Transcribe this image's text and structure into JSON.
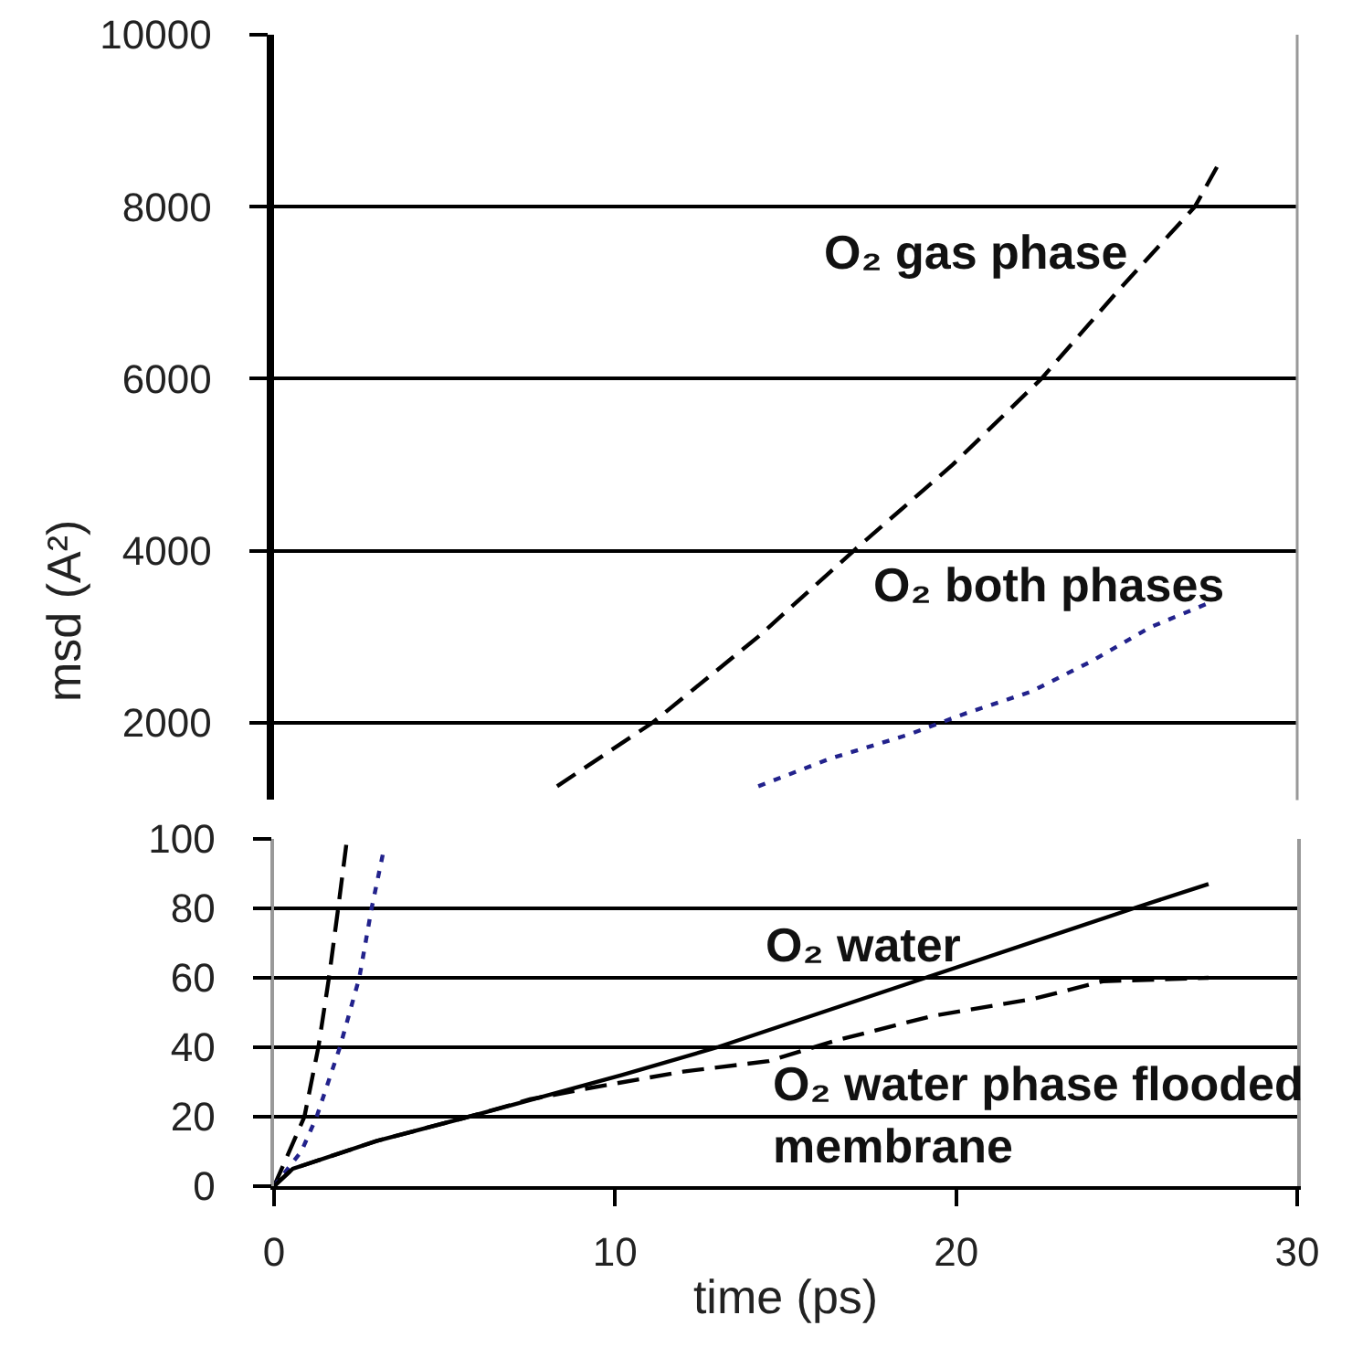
{
  "chart_data": [
    {
      "type": "line",
      "ylabel": "msd (A²)",
      "xlim": [
        0,
        30
      ],
      "ylim": [
        1100,
        10000
      ],
      "yticks": [
        2000,
        4000,
        6000,
        8000,
        10000
      ],
      "grid": "y",
      "tick_labels": "y",
      "series": [
        {
          "name": "O₂ gas phase",
          "color": "#000000",
          "line_style": "dashed",
          "x": [
            8.3,
            11.1,
            14.2,
            17.0,
            19.9,
            22.5,
            24.7,
            27.0,
            27.7
          ],
          "values": [
            1260,
            2000,
            3000,
            4000,
            5000,
            6000,
            7000,
            8000,
            8500
          ]
        },
        {
          "name": "O₂ both phases",
          "color": "#22228c",
          "line_style": "dotted",
          "x": [
            14.2,
            16.3,
            18.6,
            20.3,
            22.2,
            24.0,
            25.7,
            27.4
          ],
          "values": [
            1260,
            1580,
            1860,
            2110,
            2360,
            2720,
            3110,
            3390
          ]
        }
      ]
    },
    {
      "type": "line",
      "xlabel": "time (ps)",
      "xlim": [
        0,
        30
      ],
      "xticks": [
        0,
        10,
        20,
        30
      ],
      "ylim": [
        0,
        100
      ],
      "yticks": [
        0,
        20,
        40,
        60,
        80,
        100
      ],
      "grid": "y",
      "series": [
        {
          "color": "#000000",
          "line_style": "dashed",
          "x": [
            0,
            0.89,
            1.3,
            1.61,
            1.88,
            2.14
          ],
          "values": [
            0,
            20,
            40,
            60,
            80,
            100
          ]
        },
        {
          "color": "#22228c",
          "line_style": "dotted",
          "x": [
            0,
            0.8,
            1.25,
            1.93,
            2.5,
            2.86,
            3.22
          ],
          "values": [
            0,
            10,
            20,
            40,
            60,
            80,
            97
          ]
        },
        {
          "name": "O₂ water",
          "color": "#000000",
          "line_style": "solid",
          "x": [
            0,
            0.55,
            3.0,
            6.1,
            10.2,
            13.0,
            19.1,
            25.2,
            27.4
          ],
          "values": [
            0,
            5,
            13,
            21,
            32,
            40,
            60,
            80,
            87
          ]
        },
        {
          "name": "O₂ water phase flooded membrane",
          "color": "#000000",
          "line_style": "dashed",
          "x": [
            0,
            0.55,
            3.0,
            6.1,
            7.5,
            9.1,
            12.0,
            14.5,
            16.5,
            19.3,
            22.3,
            24.3,
            27.4
          ],
          "values": [
            0,
            5,
            13,
            21,
            25,
            28,
            33,
            36,
            42,
            49,
            54,
            59,
            60
          ]
        }
      ]
    }
  ]
}
